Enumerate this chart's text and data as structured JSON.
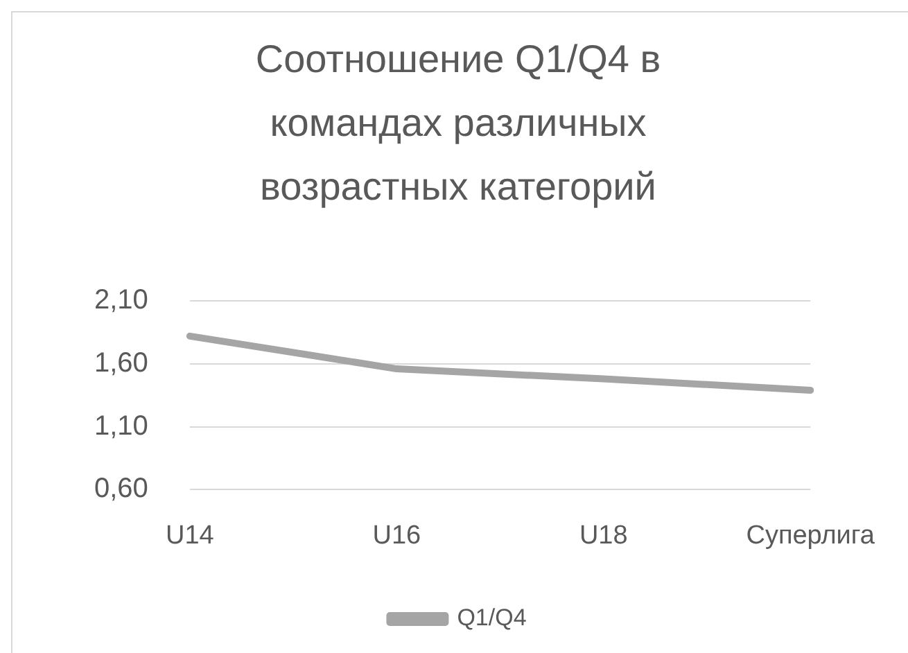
{
  "chart_data": {
    "type": "line",
    "title": "Соотношение Q1/Q4 в командах различных возрастных категорий",
    "categories": [
      "U14",
      "U16",
      "U18",
      "Суперлига"
    ],
    "series": [
      {
        "name": "Q1/Q4",
        "color": "#a5a5a5",
        "values": [
          1.82,
          1.56,
          1.48,
          1.39
        ]
      }
    ],
    "ylim": [
      0.6,
      2.1
    ],
    "yticks": [
      {
        "value": 0.6,
        "label": "0,60"
      },
      {
        "value": 1.1,
        "label": "1,10"
      },
      {
        "value": 1.6,
        "label": "1,60"
      },
      {
        "value": 2.1,
        "label": "2,10"
      }
    ],
    "grid": "y",
    "legend": "bottom",
    "marker": "none"
  }
}
